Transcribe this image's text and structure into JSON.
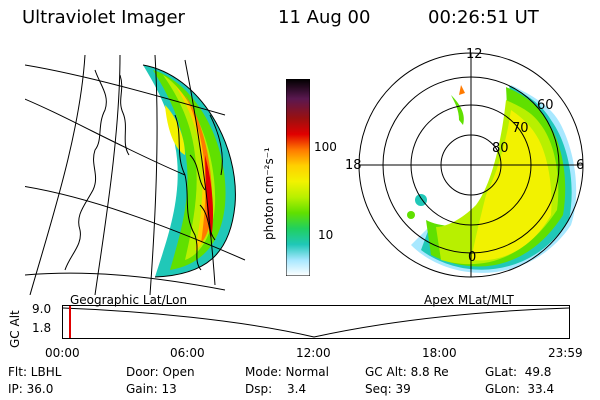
{
  "header": {
    "title": "Ultraviolet Imager",
    "date": "11 Aug 00",
    "time": "00:26:51 UT"
  },
  "geographic_panel": {
    "caption": "Geographic Lat/Lon"
  },
  "polar_panel": {
    "caption": "Apex MLat/MLT",
    "mlt_labels": [
      "12",
      "18",
      "6",
      "0"
    ],
    "mlat_labels": [
      "60",
      "70",
      "80"
    ]
  },
  "colorbar": {
    "unit_label": "photon cm⁻²s⁻¹",
    "ticks": [
      "100",
      "10"
    ],
    "colors": [
      "#000000",
      "#5a1850",
      "#9a1010",
      "#e00000",
      "#ff7a00",
      "#ffd000",
      "#f2f200",
      "#b8f000",
      "#60e000",
      "#20d060",
      "#20c8b8",
      "#a8e8ff",
      "#ffffff"
    ]
  },
  "orbit_plot": {
    "ylabel": "GC Alt",
    "ytick_top": "9.0",
    "ytick_bottom": "1.8",
    "xticks": [
      "00:00",
      "06:00",
      "12:00",
      "18:00",
      "23:59"
    ],
    "marker_color": "#e00000"
  },
  "info": {
    "flt": "Flt: LBHL",
    "ip": "IP: 36.0",
    "door": "Door: Open",
    "gain": "Gain: 13",
    "mode": "Mode: Normal",
    "dsp_label": "Dsp:",
    "dsp_value": "3.4",
    "gc_alt": "GC Alt: 8.8 Re",
    "seq": "Seq: 39",
    "glat": "GLat:  49.8",
    "glon": "GLon:  33.4"
  }
}
